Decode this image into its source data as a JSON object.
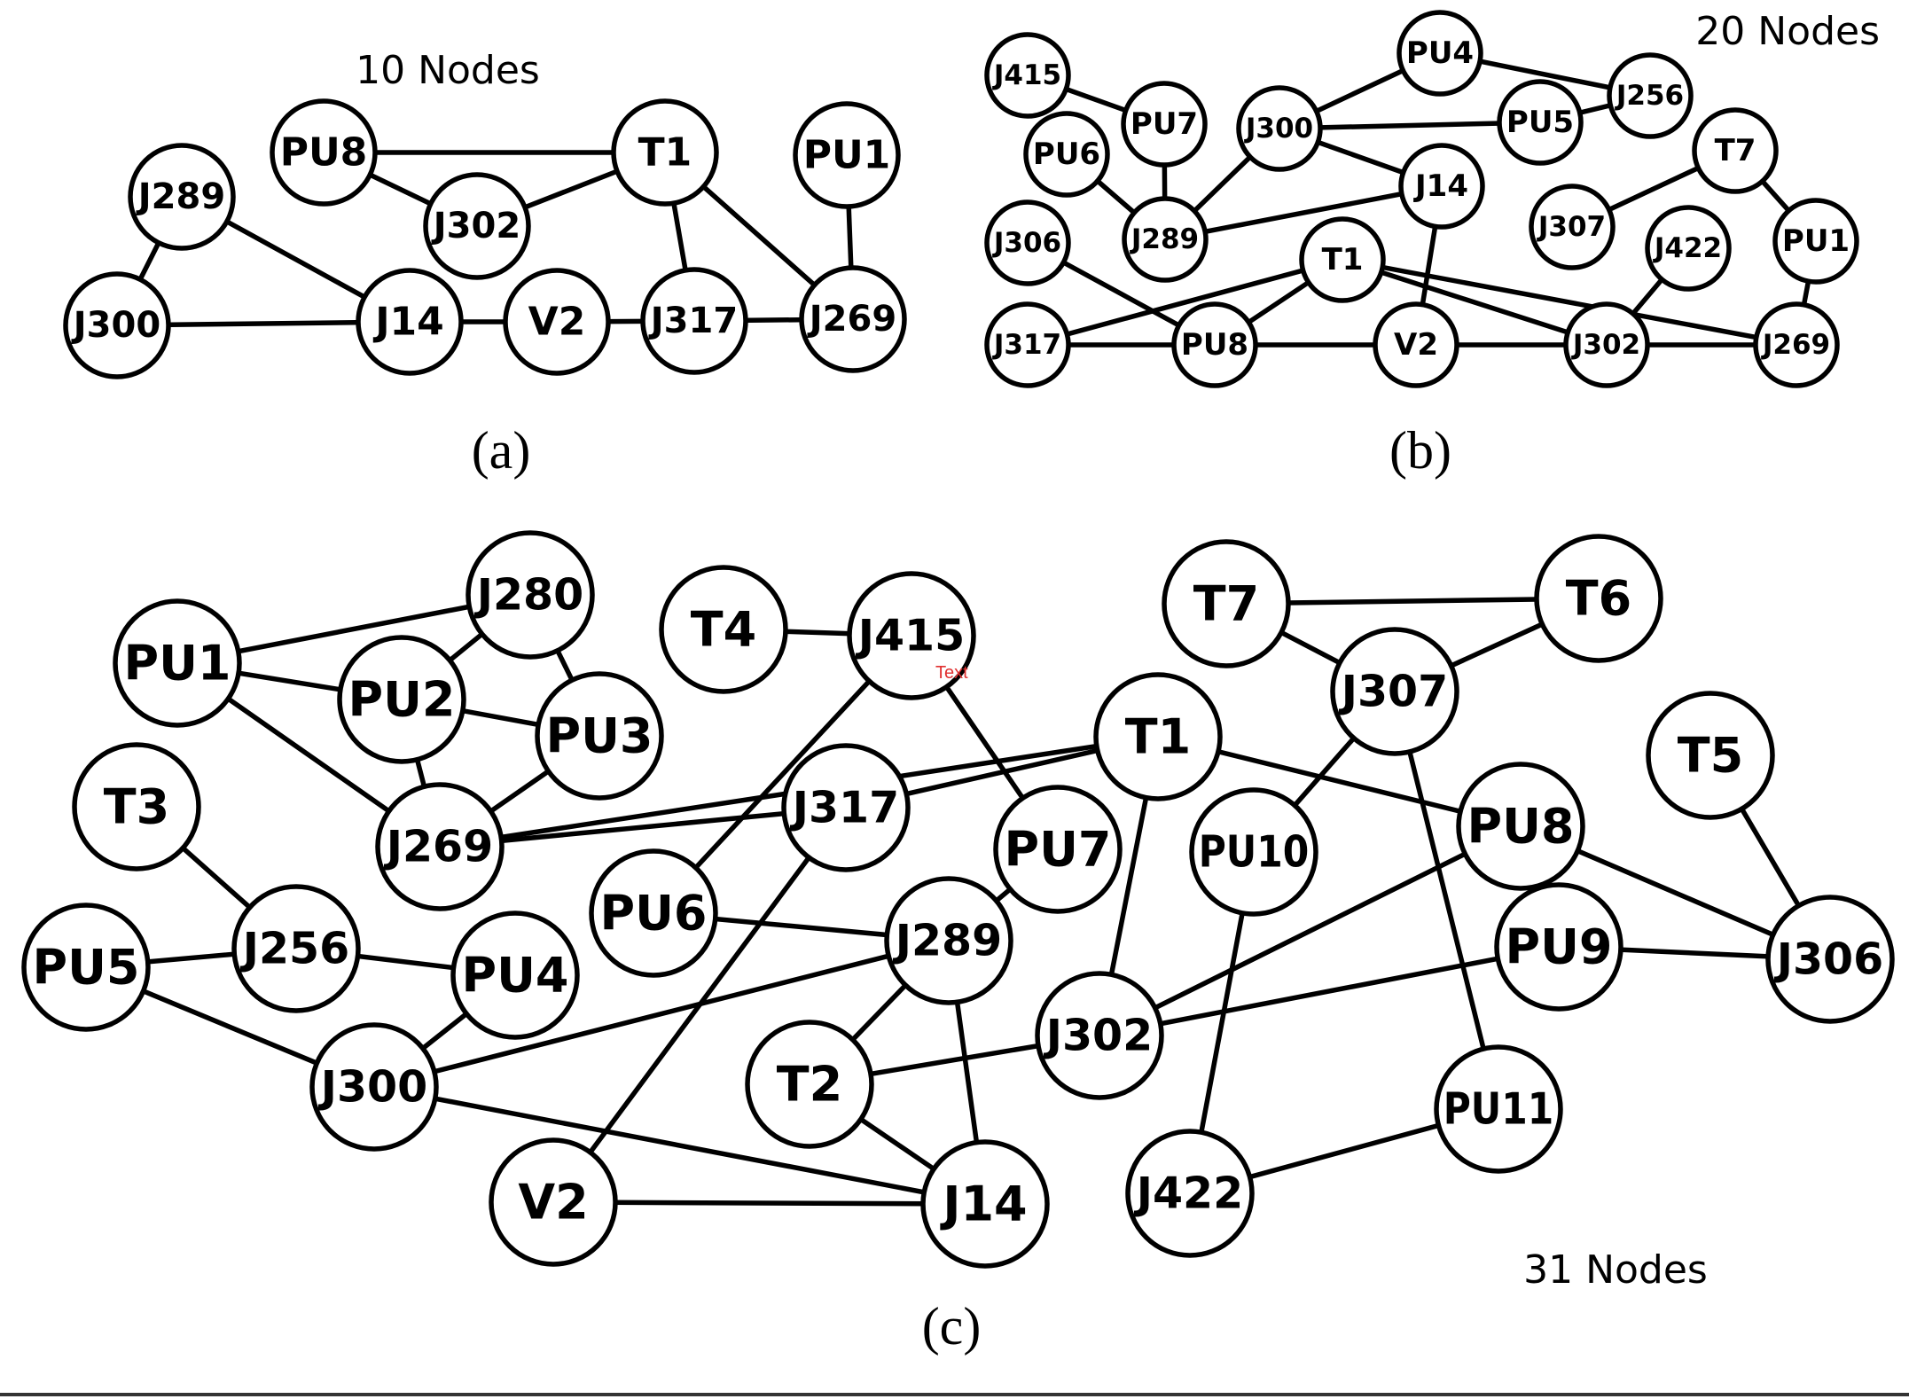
{
  "panels": [
    {
      "id": "a",
      "caption": "(a)",
      "count_label": "10 Nodes",
      "nodes": [
        "PU8",
        "T1",
        "PU1",
        "J289",
        "J302",
        "J300",
        "J14",
        "V2",
        "J317",
        "J269"
      ],
      "edges": [
        [
          "PU8",
          "T1"
        ],
        [
          "PU8",
          "J302"
        ],
        [
          "J302",
          "T1"
        ],
        [
          "T1",
          "J317"
        ],
        [
          "T1",
          "J269"
        ],
        [
          "PU1",
          "J269"
        ],
        [
          "J289",
          "J300"
        ],
        [
          "J289",
          "J14"
        ],
        [
          "J300",
          "J14"
        ],
        [
          "J14",
          "V2"
        ],
        [
          "V2",
          "J317"
        ],
        [
          "J317",
          "J269"
        ]
      ]
    },
    {
      "id": "b",
      "caption": "(b)",
      "count_label": "20 Nodes",
      "nodes": [
        "J415",
        "PU4",
        "J256",
        "PU7",
        "J300",
        "PU5",
        "PU6",
        "T7",
        "J14",
        "J306",
        "J289",
        "J307",
        "J422",
        "PU1",
        "T1",
        "J317",
        "PU8",
        "V2",
        "J302",
        "J269"
      ],
      "edges": [
        [
          "J415",
          "PU7"
        ],
        [
          "PU7",
          "J289"
        ],
        [
          "PU6",
          "J289"
        ],
        [
          "J300",
          "PU4"
        ],
        [
          "J300",
          "PU5"
        ],
        [
          "PU4",
          "J256"
        ],
        [
          "PU5",
          "J256"
        ],
        [
          "J300",
          "J289"
        ],
        [
          "J300",
          "J14"
        ],
        [
          "J289",
          "J14"
        ],
        [
          "J14",
          "V2"
        ],
        [
          "T7",
          "J307"
        ],
        [
          "T7",
          "PU1"
        ],
        [
          "PU1",
          "J269"
        ],
        [
          "J306",
          "PU8"
        ],
        [
          "T1",
          "J317"
        ],
        [
          "T1",
          "PU8"
        ],
        [
          "T1",
          "J302"
        ],
        [
          "T1",
          "J269"
        ],
        [
          "J422",
          "J302"
        ],
        [
          "J317",
          "PU8"
        ],
        [
          "PU8",
          "V2"
        ],
        [
          "V2",
          "J302"
        ],
        [
          "J302",
          "J269"
        ]
      ]
    },
    {
      "id": "c",
      "caption": "(c)",
      "count_label": "31 Nodes",
      "stray_text": "Text",
      "nodes": [
        "J280",
        "T4",
        "J415",
        "T7",
        "T6",
        "PU1",
        "PU2",
        "J307",
        "PU3",
        "T1",
        "T5",
        "T3",
        "J317",
        "J269",
        "PU8",
        "PU7",
        "PU10",
        "PU6",
        "J256",
        "J289",
        "PU9",
        "J306",
        "PU5",
        "PU4",
        "J302",
        "J300",
        "T2",
        "PU11",
        "V2",
        "J14",
        "J422"
      ],
      "edges": [
        [
          "PU1",
          "J280"
        ],
        [
          "PU1",
          "PU2"
        ],
        [
          "PU1",
          "J269"
        ],
        [
          "PU2",
          "J280"
        ],
        [
          "J280",
          "PU3"
        ],
        [
          "PU2",
          "PU3"
        ],
        [
          "PU2",
          "J269"
        ],
        [
          "PU3",
          "J269"
        ],
        [
          "T4",
          "J415"
        ],
        [
          "J415",
          "PU7"
        ],
        [
          "J415",
          "PU6"
        ],
        [
          "T7",
          "T6"
        ],
        [
          "T7",
          "J307"
        ],
        [
          "T6",
          "J307"
        ],
        [
          "J307",
          "PU10"
        ],
        [
          "J307",
          "PU11"
        ],
        [
          "J269",
          "T1"
        ],
        [
          "J269",
          "J317"
        ],
        [
          "J317",
          "T1"
        ],
        [
          "J317",
          "V2"
        ],
        [
          "T1",
          "PU8"
        ],
        [
          "T1",
          "J302"
        ],
        [
          "T5",
          "J306"
        ],
        [
          "T3",
          "J256"
        ],
        [
          "PU5",
          "J256"
        ],
        [
          "J256",
          "PU4"
        ],
        [
          "PU5",
          "J300"
        ],
        [
          "PU4",
          "J300"
        ],
        [
          "J300",
          "J289"
        ],
        [
          "J300",
          "J14"
        ],
        [
          "PU6",
          "J289"
        ],
        [
          "PU7",
          "J289"
        ],
        [
          "J289",
          "T2"
        ],
        [
          "J289",
          "J14"
        ],
        [
          "T2",
          "J302"
        ],
        [
          "T2",
          "J14"
        ],
        [
          "V2",
          "J14"
        ],
        [
          "PU8",
          "J302"
        ],
        [
          "PU8",
          "J306"
        ],
        [
          "PU9",
          "J302"
        ],
        [
          "PU9",
          "J306"
        ],
        [
          "PU10",
          "J422"
        ],
        [
          "J422",
          "PU11"
        ]
      ]
    }
  ]
}
